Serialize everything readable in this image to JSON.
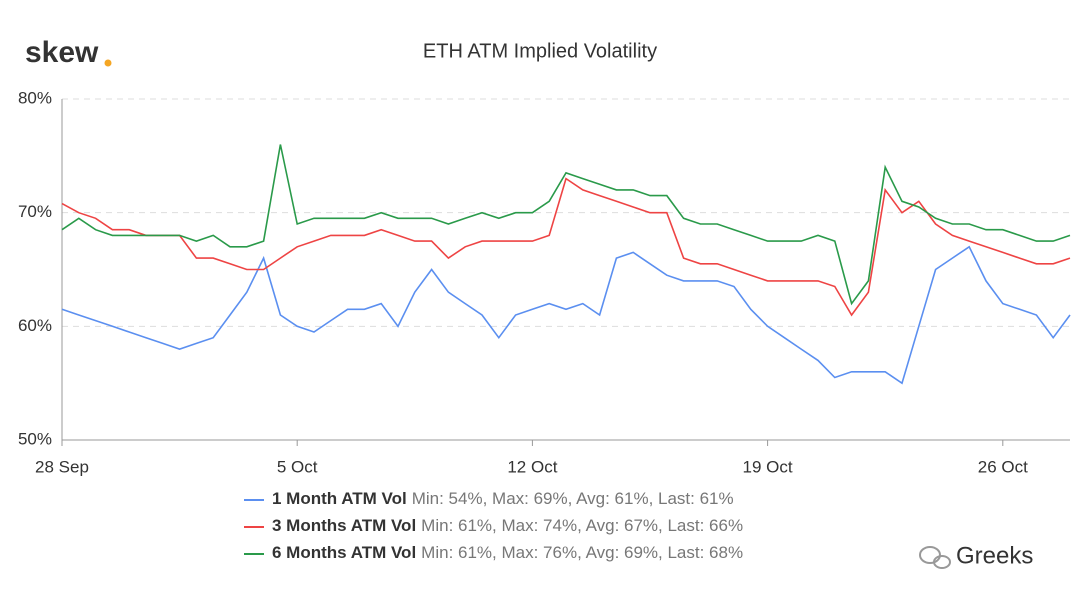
{
  "logo": "skew",
  "watermark": "Greeks",
  "chart_data": {
    "type": "line",
    "title": "ETH ATM Implied Volatility",
    "x": [
      0,
      0.5,
      1,
      1.5,
      2,
      2.5,
      3,
      3.5,
      4,
      4.5,
      5,
      5.5,
      6,
      6.5,
      7,
      7.5,
      8,
      8.5,
      9,
      9.5,
      10,
      10.5,
      11,
      11.5,
      12,
      12.5,
      13,
      13.5,
      14,
      14.5,
      15,
      15.5,
      16,
      16.5,
      17,
      17.5,
      18,
      18.5,
      19,
      19.5,
      20,
      20.5,
      21,
      21.5,
      22,
      22.5,
      23,
      23.5,
      24,
      24.5,
      25,
      25.5,
      26,
      26.5,
      27,
      27.5,
      28,
      28.5,
      29,
      29.5,
      30
    ],
    "xlim": [
      0,
      30
    ],
    "xticks": [
      {
        "value": 0,
        "label": "28 Sep"
      },
      {
        "value": 7,
        "label": "5 Oct"
      },
      {
        "value": 14,
        "label": "12 Oct"
      },
      {
        "value": 21,
        "label": "19 Oct"
      },
      {
        "value": 28,
        "label": "26 Oct"
      }
    ],
    "ylim": [
      50,
      80
    ],
    "yticks": [
      {
        "value": 50,
        "label": "50%"
      },
      {
        "value": 60,
        "label": "60%"
      },
      {
        "value": 70,
        "label": "70%"
      },
      {
        "value": 80,
        "label": "80%"
      }
    ],
    "grid": true,
    "series": [
      {
        "name": "1 Month ATM Vol",
        "legend_stats": "Min: 54%, Max: 69%, Avg: 61%, Last: 61%",
        "color": "#5b8ff0",
        "values": [
          61.5,
          61,
          60.5,
          60,
          59.5,
          59,
          58.5,
          58,
          58.5,
          59,
          61,
          63,
          66,
          61,
          60,
          59.5,
          60.5,
          61.5,
          61.5,
          62,
          60,
          63,
          65,
          63,
          62,
          61,
          59,
          61,
          61.5,
          62,
          61.5,
          62,
          61,
          66,
          66.5,
          65.5,
          64.5,
          64,
          64,
          64,
          63.5,
          61.5,
          60,
          59,
          58,
          57,
          55.5,
          56,
          56,
          56,
          55,
          60,
          65,
          66,
          67,
          64,
          62,
          61.5,
          61,
          59,
          61
        ]
      },
      {
        "name": "3 Months ATM Vol",
        "legend_stats": "Min: 61%, Max: 74%, Avg: 67%, Last: 66%",
        "color": "#ee4444",
        "values": [
          70.8,
          70,
          69.5,
          68.5,
          68.5,
          68,
          68,
          68,
          66,
          66,
          65.5,
          65,
          65,
          66,
          67,
          67.5,
          68,
          68,
          68,
          68.5,
          68,
          67.5,
          67.5,
          66,
          67,
          67.5,
          67.5,
          67.5,
          67.5,
          68,
          73,
          72,
          71.5,
          71,
          70.5,
          70,
          70,
          66,
          65.5,
          65.5,
          65,
          64.5,
          64,
          64,
          64,
          64,
          63.5,
          61,
          63,
          72,
          70,
          71,
          69,
          68,
          67.5,
          67,
          66.5,
          66,
          65.5,
          65.5,
          66
        ]
      },
      {
        "name": "6 Months ATM Vol",
        "legend_stats": "Min: 61%, Max: 76%, Avg: 69%, Last: 68%",
        "color": "#2a9a4a",
        "values": [
          68.5,
          69.5,
          68.5,
          68,
          68,
          68,
          68,
          68,
          67.5,
          68,
          67,
          67,
          67.5,
          76,
          69,
          69.5,
          69.5,
          69.5,
          69.5,
          70,
          69.5,
          69.5,
          69.5,
          69,
          69.5,
          70,
          69.5,
          70,
          70,
          71,
          73.5,
          73,
          72.5,
          72,
          72,
          71.5,
          71.5,
          69.5,
          69,
          69,
          68.5,
          68,
          67.5,
          67.5,
          67.5,
          68,
          67.5,
          62,
          64,
          74,
          71,
          70.5,
          69.5,
          69,
          69,
          68.5,
          68.5,
          68,
          67.5,
          67.5,
          68
        ]
      }
    ]
  }
}
